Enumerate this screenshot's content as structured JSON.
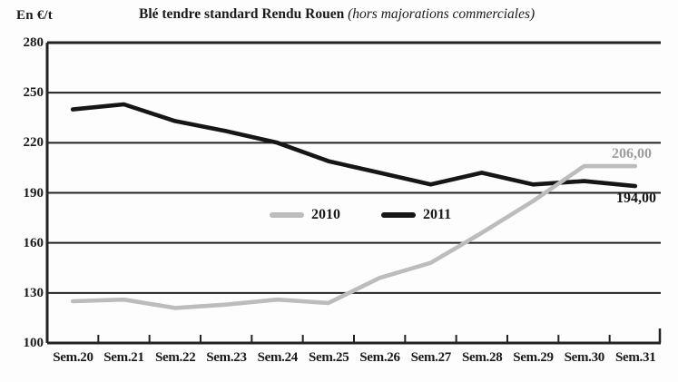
{
  "header": {
    "unit_label": "En €/t",
    "title_bold": "Blé tendre standard Rendu Rouen",
    "title_italic": " (hors majorations commerciales)"
  },
  "colors": {
    "series_2010": "#bcbcbc",
    "series_2011": "#161616",
    "grid": "#222222",
    "gray_label_text": "#9e9e9e"
  },
  "chart_data": {
    "type": "line",
    "title": "Blé tendre standard Rendu Rouen (hors majorations commerciales)",
    "ylabel": "En €/t",
    "xlabel": "",
    "categories": [
      "Sem.20",
      "Sem.21",
      "Sem.22",
      "Sem.23",
      "Sem.24",
      "Sem.25",
      "Sem.26",
      "Sem.27",
      "Sem.28",
      "Sem.29",
      "Sem.30",
      "Sem.31"
    ],
    "series": [
      {
        "name": "2011",
        "color": "#161616",
        "values": [
          240,
          243,
          233,
          227,
          220,
          209,
          202,
          195,
          202,
          195,
          197,
          194
        ],
        "end_label": "194,00"
      },
      {
        "name": "2010",
        "color": "#bcbcbc",
        "values": [
          125,
          126,
          121,
          123,
          126,
          124,
          139,
          148,
          166,
          185,
          206,
          206
        ],
        "end_label": "206,00"
      }
    ],
    "yticks": [
      280,
      250,
      220,
      190,
      160,
      130,
      100
    ],
    "ylim": [
      100,
      280
    ],
    "grid": "horizontal",
    "legend_position": "center-inside",
    "legend_order": [
      "2010",
      "2011"
    ]
  }
}
